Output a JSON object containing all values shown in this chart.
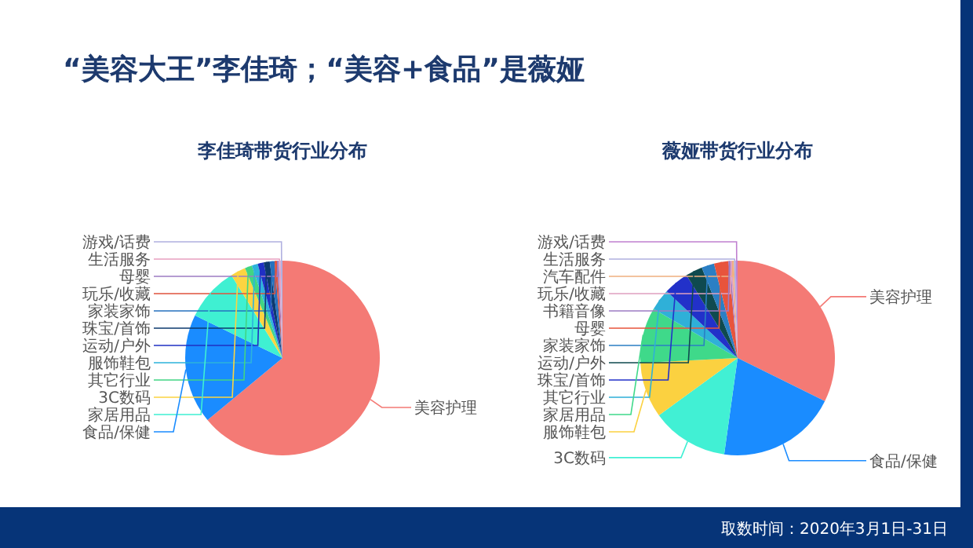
{
  "chart_data": [
    {
      "type": "pie",
      "title": "“美容大王”李佳琦；“美容+食品”是薇娅",
      "subtitle": "李佳琦带货行业分布",
      "categories": [
        "美容护理",
        "食品/保健",
        "家居用品",
        "3C数码",
        "其它行业",
        "服饰鞋包",
        "运动/户外",
        "珠宝/首饰",
        "家装家饰",
        "玩乐/收藏",
        "母婴",
        "生活服务",
        "游戏/话费"
      ],
      "values": [
        64,
        18.2,
        9,
        2.5,
        1.2,
        1,
        1,
        1,
        0.8,
        0.4,
        0.3,
        0.3,
        0.3
      ],
      "colors": [
        "#f47a75",
        "#1a8cff",
        "#3ff0d2",
        "#fcd441",
        "#41d584",
        "#2db3dc",
        "#2030c4",
        "#0d3a6e",
        "#2672bf",
        "#e0533e",
        "#9d7cc4",
        "#e8a0c0",
        "#b0b0e0"
      ]
    },
    {
      "type": "pie",
      "title": "薇娅带货行业分布",
      "categories": [
        "美容护理",
        "食品/保健",
        "3C数码",
        "服饰鞋包",
        "家居用品",
        "其它行业",
        "珠宝/首饰",
        "运动/户外",
        "家装家饰",
        "母婴",
        "书籍音像",
        "玩乐/收藏",
        "汽车配件",
        "生活服务",
        "游戏/话费"
      ],
      "values": [
        32.3,
        19.9,
        12.8,
        9.2,
        9.2,
        3.6,
        4.2,
        2.8,
        2.1,
        2.4,
        0.3,
        0.3,
        0.3,
        0.3,
        0.3
      ],
      "colors": [
        "#f47a75",
        "#1a8cff",
        "#41f0d4",
        "#fbd140",
        "#3fd98a",
        "#2fb0d8",
        "#2231c9",
        "#0f4a4f",
        "#2b7fc4",
        "#e8543c",
        "#9d7cc4",
        "#e0a0c0",
        "#f0b080",
        "#b0b0e0",
        "#c080d0"
      ],
      "annotations": [
        "取数时间：2020年3月1日-31日"
      ]
    }
  ]
}
